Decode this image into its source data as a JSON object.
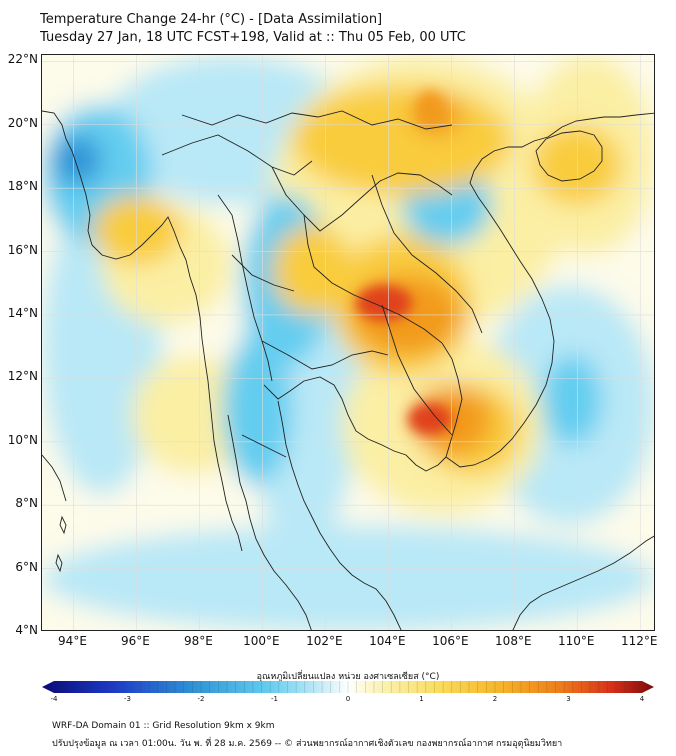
{
  "title": {
    "line1": "Temperature Change 24-hr (°C) - [Data Assimilation]",
    "line2": "Tuesday 27 Jan, 18 UTC FCST+198, Valid at :: Thu 05 Feb, 00 UTC"
  },
  "map": {
    "lon_range": [
      93,
      112.5
    ],
    "lat_range": [
      4,
      22.2
    ],
    "lat_labels": [
      "22°N",
      "20°N",
      "18°N",
      "16°N",
      "14°N",
      "12°N",
      "10°N",
      "8°N",
      "6°N",
      "4°N"
    ],
    "lon_labels": [
      "94°E",
      "96°E",
      "98°E",
      "100°E",
      "102°E",
      "104°E",
      "106°E",
      "108°E",
      "110°E",
      "112°E"
    ],
    "colors": {
      "strong_cold": "#2f94d6",
      "cold": "#63cdf0",
      "cool": "#b9e8f6",
      "neutral": "#fdfbea",
      "mild": "#fbefa4",
      "warm": "#f9cc3e",
      "hot": "#f29a1d",
      "very_hot": "#e0431a",
      "border": "#222222",
      "grid": "#dddddd"
    }
  },
  "colorbar": {
    "label": "อุณหภูมิเปลี่ยนแปลง หน่วย องศาเซลเซียส (°C)",
    "min": -4,
    "max": 4,
    "ticks": [
      "-4",
      "-3",
      "-2",
      "-1",
      "0",
      "1",
      "2",
      "3",
      "4"
    ]
  },
  "footer": {
    "line1": "WRF-DA Domain 01 :: Grid Resolution 9km x 9km",
    "line2": "ปรับปรุงข้อมูล ณ เวลา 01:00น. วัน พ. ที่ 28 ม.ค. 2569 -- © ส่วนพยากรณ์อากาศเชิงตัวเลข กองพยากรณ์อากาศ กรมอุตุนิยมวิทยา"
  }
}
